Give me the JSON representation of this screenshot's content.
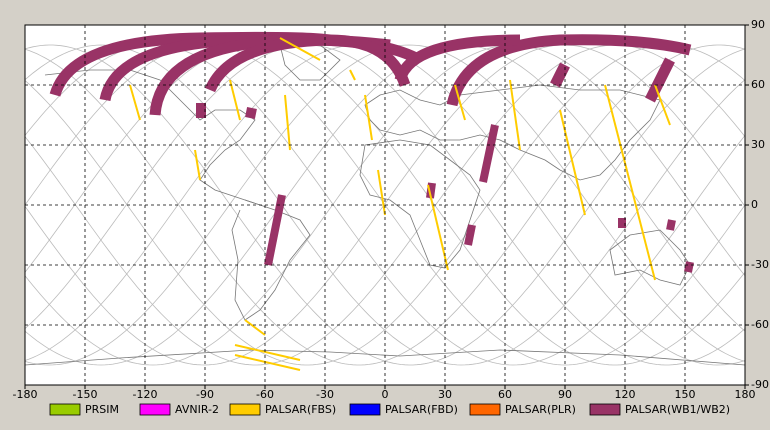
{
  "map": {
    "xlim": [
      -180,
      180
    ],
    "ylim": [
      -90,
      90
    ],
    "xticks": [
      -180,
      -150,
      -120,
      -90,
      -60,
      -30,
      0,
      30,
      60,
      90,
      120,
      150,
      180
    ],
    "yticks": [
      90,
      60,
      30,
      0,
      -30,
      -60,
      -90
    ],
    "grid": true,
    "legend": [
      {
        "name": "PRSIM",
        "color": "#99cc00"
      },
      {
        "name": "AVNIR-2",
        "color": "#ff00ff"
      },
      {
        "name": "PALSAR(FBS)",
        "color": "#ffcc00"
      },
      {
        "name": "PALSAR(FBD)",
        "color": "#0000ff"
      },
      {
        "name": "PALSAR(PLR)",
        "color": "#ff6600"
      },
      {
        "name": "PALSAR(WB1/WB2)",
        "color": "#993366"
      }
    ]
  }
}
